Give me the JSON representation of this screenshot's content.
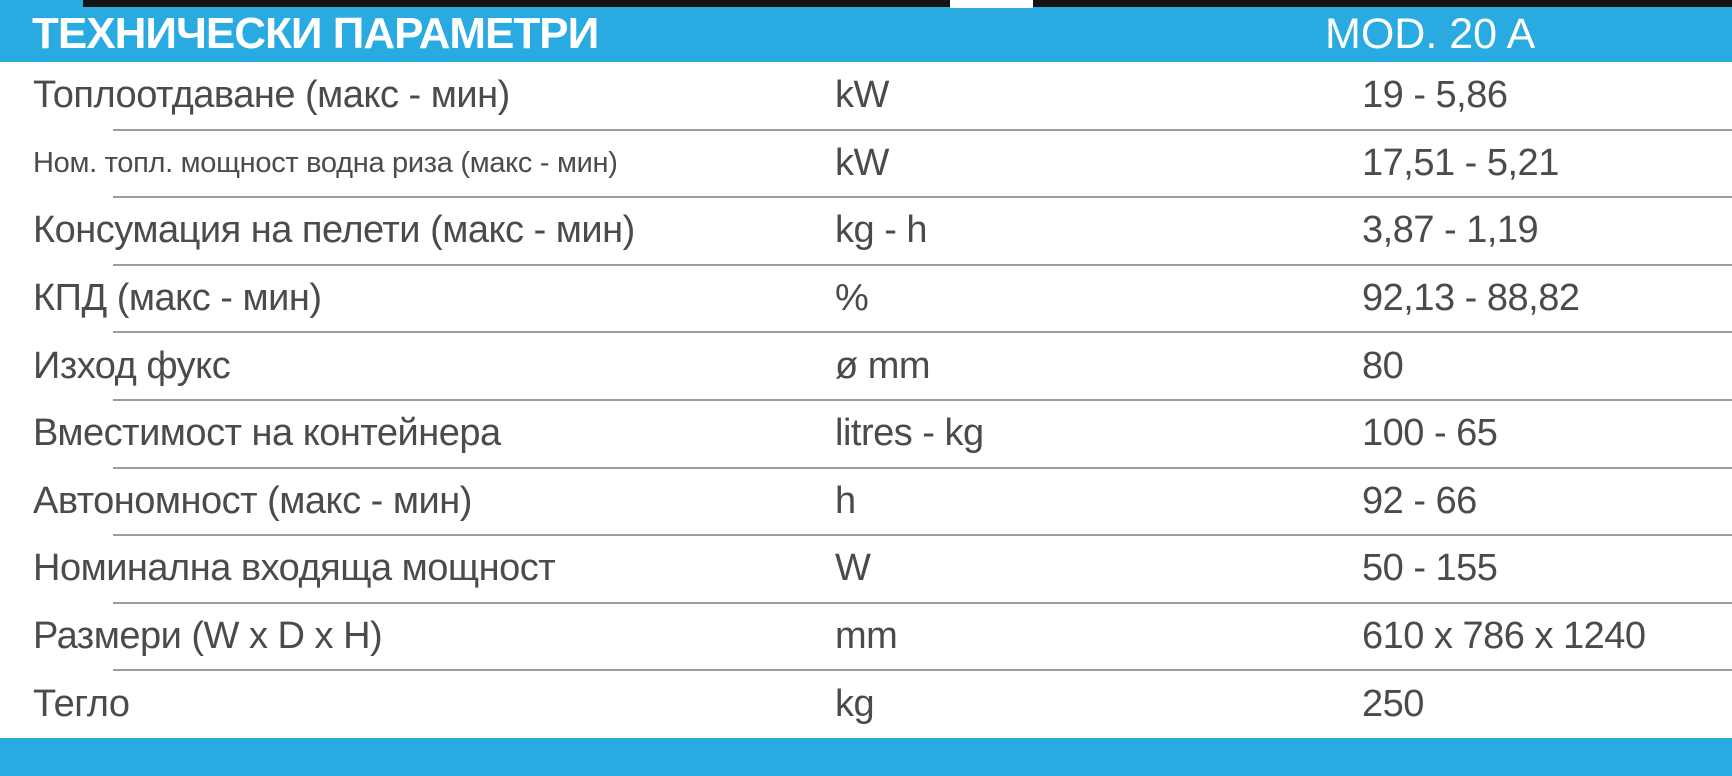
{
  "header": {
    "title": "ТЕХНИЧЕСКИ ПАРАМЕТРИ",
    "model": "MOD. 20 A"
  },
  "colors": {
    "accent_blue": "#29abe2",
    "text_gray": "#4b4b4b",
    "separator_gray": "#9c9c9c",
    "border_black": "#141414"
  },
  "table": {
    "columns": [
      "parameter",
      "unit",
      "value"
    ],
    "rows": [
      {
        "label": "Топлоотдаване (макс - мин)",
        "unit": "kW",
        "value": "19 - 5,86"
      },
      {
        "label": "Ном. топл. мощност водна риза (макс - мин)",
        "unit": "kW",
        "value": "17,51 - 5,21"
      },
      {
        "label": "Консумация на пелети (макс - мин)",
        "unit": "kg - h",
        "value": "3,87 - 1,19"
      },
      {
        "label": "КПД (макс - мин)",
        "unit": "%",
        "value": "92,13 - 88,82"
      },
      {
        "label": "Изход фукс",
        "unit": "ø mm",
        "value": "80"
      },
      {
        "label": "Вместимост на контейнера",
        "unit": "litres - kg",
        "value": "100 - 65"
      },
      {
        "label": "Автономност (макс - мин)",
        "unit": "h",
        "value": "92 - 66"
      },
      {
        "label": "Номинална входяща мощност",
        "unit": "W",
        "value": "50 - 155"
      },
      {
        "label": "Размери (W x D x H)",
        "unit": "mm",
        "value": "610 x 786 x 1240"
      },
      {
        "label": "Тегло",
        "unit": "kg",
        "value": "250"
      }
    ]
  }
}
